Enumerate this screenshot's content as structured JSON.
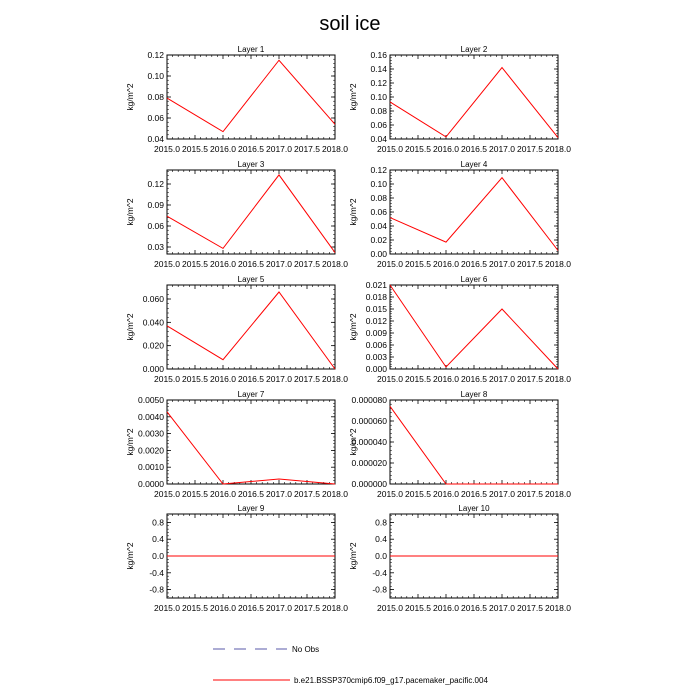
{
  "figure": {
    "title": "soil ice",
    "legend": [
      {
        "label": "No Obs",
        "style": "dashed",
        "color": "#5a5aa8"
      },
      {
        "label": "b.e21.BSSP370cmip6.f09_g17.pacemaker_pacific.004",
        "style": "solid",
        "color": "#ff0000"
      }
    ]
  },
  "chart_data": [
    {
      "type": "line",
      "title": "Layer 1",
      "ylabel": "kg/m^2",
      "xlabel": "",
      "x": [
        2015,
        2016,
        2017,
        2018
      ],
      "xlim": [
        2015,
        2018
      ],
      "xticks": [
        "2015.0",
        "2015.5",
        "2016.0",
        "2016.5",
        "2017.0",
        "2017.5",
        "2018.0"
      ],
      "ylim": [
        0.04,
        0.12
      ],
      "yticks": [
        "0.04",
        "0.06",
        "0.08",
        "0.10",
        "0.12"
      ],
      "series": [
        {
          "name": "b.e21.BSSP370cmip6.f09_g17.pacemaker_pacific.004",
          "color": "#ff0000",
          "values": [
            0.079,
            0.047,
            0.115,
            0.054
          ]
        }
      ]
    },
    {
      "type": "line",
      "title": "Layer 2",
      "ylabel": "kg/m^2",
      "xlabel": "",
      "x": [
        2015,
        2016,
        2017,
        2018
      ],
      "xlim": [
        2015,
        2018
      ],
      "xticks": [
        "2015.0",
        "2015.5",
        "2016.0",
        "2016.5",
        "2017.0",
        "2017.5",
        "2018.0"
      ],
      "ylim": [
        0.04,
        0.16
      ],
      "yticks": [
        "0.04",
        "0.06",
        "0.08",
        "0.10",
        "0.12",
        "0.14",
        "0.16"
      ],
      "series": [
        {
          "name": "b.e21.BSSP370cmip6.f09_g17.pacemaker_pacific.004",
          "color": "#ff0000",
          "values": [
            0.093,
            0.043,
            0.142,
            0.042
          ]
        }
      ]
    },
    {
      "type": "line",
      "title": "Layer 3",
      "ylabel": "kg/m^2",
      "xlabel": "",
      "x": [
        2015,
        2016,
        2017,
        2018
      ],
      "xlim": [
        2015,
        2018
      ],
      "xticks": [
        "2015.0",
        "2015.5",
        "2016.0",
        "2016.5",
        "2017.0",
        "2017.5",
        "2018.0"
      ],
      "ylim": [
        0.02,
        0.14
      ],
      "yticks": [
        "0.03",
        "0.06",
        "0.09",
        "0.12"
      ],
      "series": [
        {
          "name": "b.e21.BSSP370cmip6.f09_g17.pacemaker_pacific.004",
          "color": "#ff0000",
          "values": [
            0.074,
            0.028,
            0.133,
            0.022
          ]
        }
      ]
    },
    {
      "type": "line",
      "title": "Layer 4",
      "ylabel": "kg/m^2",
      "xlabel": "",
      "x": [
        2015,
        2016,
        2017,
        2018
      ],
      "xlim": [
        2015,
        2018
      ],
      "xticks": [
        "2015.0",
        "2015.5",
        "2016.0",
        "2016.5",
        "2017.0",
        "2017.5",
        "2018.0"
      ],
      "ylim": [
        0.0,
        0.12
      ],
      "yticks": [
        "0.00",
        "0.02",
        "0.04",
        "0.06",
        "0.08",
        "0.10",
        "0.12"
      ],
      "series": [
        {
          "name": "b.e21.BSSP370cmip6.f09_g17.pacemaker_pacific.004",
          "color": "#ff0000",
          "values": [
            0.052,
            0.017,
            0.109,
            0.005
          ]
        }
      ]
    },
    {
      "type": "line",
      "title": "Layer 5",
      "ylabel": "kg/m^2",
      "xlabel": "",
      "x": [
        2015,
        2016,
        2017,
        2018
      ],
      "xlim": [
        2015,
        2018
      ],
      "xticks": [
        "2015.0",
        "2015.5",
        "2016.0",
        "2016.5",
        "2017.0",
        "2017.5",
        "2018.0"
      ],
      "ylim": [
        0.0,
        0.072
      ],
      "yticks": [
        "0.000",
        "0.020",
        "0.040",
        "0.060"
      ],
      "series": [
        {
          "name": "b.e21.BSSP370cmip6.f09_g17.pacemaker_pacific.004",
          "color": "#ff0000",
          "values": [
            0.037,
            0.008,
            0.066,
            0.0
          ]
        }
      ]
    },
    {
      "type": "line",
      "title": "Layer 6",
      "ylabel": "kg/m^2",
      "xlabel": "",
      "x": [
        2015,
        2016,
        2017,
        2018
      ],
      "xlim": [
        2015,
        2018
      ],
      "xticks": [
        "2015.0",
        "2015.5",
        "2016.0",
        "2016.5",
        "2017.0",
        "2017.5",
        "2018.0"
      ],
      "ylim": [
        0.0,
        0.021
      ],
      "yticks": [
        "0.000",
        "0.003",
        "0.006",
        "0.009",
        "0.012",
        "0.015",
        "0.018",
        "0.021"
      ],
      "series": [
        {
          "name": "b.e21.BSSP370cmip6.f09_g17.pacemaker_pacific.004",
          "color": "#ff0000",
          "values": [
            0.021,
            0.0005,
            0.015,
            0.0
          ]
        }
      ]
    },
    {
      "type": "line",
      "title": "Layer 7",
      "ylabel": "kg/m^2",
      "xlabel": "",
      "x": [
        2015,
        2016,
        2017,
        2018
      ],
      "xlim": [
        2015,
        2018
      ],
      "xticks": [
        "2015.0",
        "2015.5",
        "2016.0",
        "2016.5",
        "2017.0",
        "2017.5",
        "2018.0"
      ],
      "ylim": [
        0.0,
        0.005
      ],
      "yticks": [
        "0.0000",
        "0.0010",
        "0.0020",
        "0.0030",
        "0.0040",
        "0.0050"
      ],
      "series": [
        {
          "name": "b.e21.BSSP370cmip6.f09_g17.pacemaker_pacific.004",
          "color": "#ff0000",
          "values": [
            0.0043,
            0.0,
            0.0003,
            0.0
          ]
        }
      ]
    },
    {
      "type": "line",
      "title": "Layer 8",
      "ylabel": "kg/m^2",
      "xlabel": "",
      "x": [
        2015,
        2016,
        2017,
        2018
      ],
      "xlim": [
        2015,
        2018
      ],
      "xticks": [
        "2015.0",
        "2015.5",
        "2016.0",
        "2016.5",
        "2017.0",
        "2017.5",
        "2018.0"
      ],
      "ylim": [
        0.0,
        8e-05
      ],
      "yticks": [
        "0.000000",
        "0.000020",
        "0.000040",
        "0.000060",
        "0.000080"
      ],
      "series": [
        {
          "name": "b.e21.BSSP370cmip6.f09_g17.pacemaker_pacific.004",
          "color": "#ff0000",
          "values": [
            7.4e-05,
            0.0,
            0.0,
            0.0
          ]
        }
      ]
    },
    {
      "type": "line",
      "title": "Layer 9",
      "ylabel": "kg/m^2",
      "xlabel": "",
      "x": [
        2015,
        2016,
        2017,
        2018
      ],
      "xlim": [
        2015,
        2018
      ],
      "xticks": [
        "2015.0",
        "2015.5",
        "2016.0",
        "2016.5",
        "2017.0",
        "2017.5",
        "2018.0"
      ],
      "ylim": [
        -1.0,
        1.0
      ],
      "yticks": [
        "-0.8",
        "-0.4",
        "0.0",
        "0.4",
        "0.8"
      ],
      "series": [
        {
          "name": "b.e21.BSSP370cmip6.f09_g17.pacemaker_pacific.004",
          "color": "#ff0000",
          "values": [
            0,
            0,
            0,
            0
          ]
        }
      ]
    },
    {
      "type": "line",
      "title": "Layer 10",
      "ylabel": "kg/m^2",
      "xlabel": "",
      "x": [
        2015,
        2016,
        2017,
        2018
      ],
      "xlim": [
        2015,
        2018
      ],
      "xticks": [
        "2015.0",
        "2015.5",
        "2016.0",
        "2016.5",
        "2017.0",
        "2017.5",
        "2018.0"
      ],
      "ylim": [
        -1.0,
        1.0
      ],
      "yticks": [
        "-0.8",
        "-0.4",
        "0.0",
        "0.4",
        "0.8"
      ],
      "series": [
        {
          "name": "b.e21.BSSP370cmip6.f09_g17.pacemaker_pacific.004",
          "color": "#ff0000",
          "values": [
            0,
            0,
            0,
            0
          ]
        }
      ]
    }
  ]
}
